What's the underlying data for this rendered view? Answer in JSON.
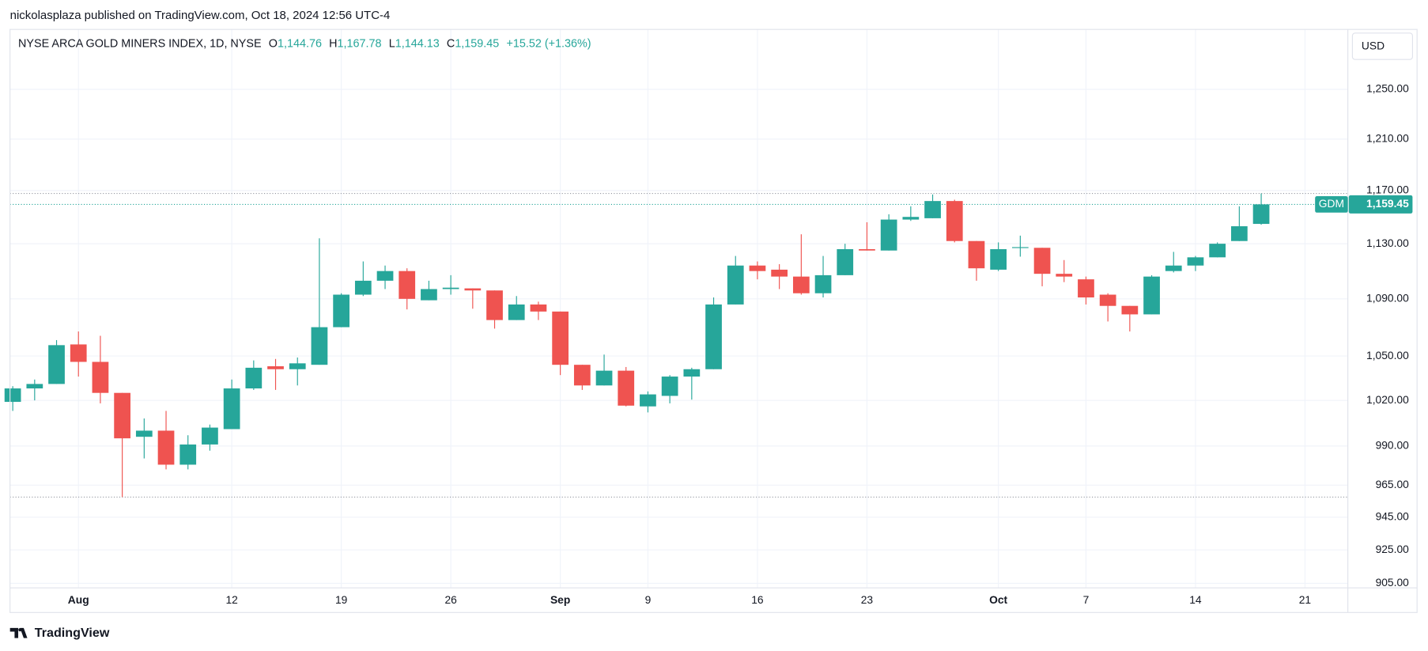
{
  "header": {
    "publisher": "nickolasplaza published on TradingView.com, Oct 18, 2024 12:56 UTC-4",
    "footer": "TradingView"
  },
  "chart_data": {
    "type": "candlestick",
    "title": "NYSE ARCA GOLD MINERS INDEX, 1D, NYSE",
    "ohlc_legend": [
      {
        "key": "O",
        "value": "1,144.76"
      },
      {
        "key": "H",
        "value": "1,167.78"
      },
      {
        "key": "L",
        "value": "1,144.13"
      },
      {
        "key": "C",
        "value": "1,159.45"
      }
    ],
    "change": "+15.52 (+1.36%)",
    "currency": "USD",
    "symbol": "GDM",
    "last_label": "1,159.45",
    "categories": [
      null,
      null,
      null,
      "Aug",
      null,
      null,
      null,
      null,
      null,
      null,
      "12",
      null,
      null,
      null,
      null,
      "19",
      null,
      null,
      null,
      null,
      "26",
      null,
      null,
      null,
      null,
      "Sep",
      null,
      null,
      null,
      "9",
      null,
      null,
      null,
      null,
      "16",
      null,
      null,
      null,
      null,
      "23",
      null,
      null,
      null,
      null,
      null,
      "Oct",
      null,
      null,
      null,
      "7",
      null,
      null,
      null,
      null,
      "14",
      null,
      null,
      null,
      null,
      "21"
    ],
    "open": [
      1019,
      1028,
      1031,
      1058,
      1046,
      1025,
      996,
      1000,
      978,
      991,
      1001,
      1028,
      1043,
      1041,
      1044,
      1070,
      1093,
      1103,
      1110,
      1089,
      1097,
      1097.5,
      1096,
      1075,
      1086,
      1081,
      1044,
      1030,
      1040,
      1016,
      1023,
      1036,
      1041,
      1086,
      1114,
      1111,
      1106,
      1094,
      1107,
      1126,
      1125,
      1148,
      1149,
      1162,
      1132,
      1111,
      1127,
      1127,
      1108,
      1104,
      1093,
      1085,
      1079,
      1110,
      1114,
      1120,
      1132,
      1144.76,
      null,
      null
    ],
    "high": [
      1029.5,
      1034,
      1061,
      1067,
      1064,
      1025,
      1008,
      1013,
      997,
      1004,
      1034,
      1047,
      1048,
      1049,
      1134,
      1094,
      1117,
      1114,
      1112,
      1103,
      1107,
      1097.5,
      1096,
      1092,
      1088,
      1081,
      1044,
      1051,
      1042.5,
      1026,
      1037,
      1042,
      1091,
      1121,
      1117,
      1115,
      1137,
      1121,
      1130,
      1146,
      1152,
      1158,
      1167,
      1163,
      1132,
      1131,
      1136,
      1127,
      1118,
      1106,
      1094,
      1085,
      1107,
      1124,
      1121,
      1131,
      1158,
      1167.78,
      null,
      null
    ],
    "low": [
      1013,
      1020,
      1031,
      1036,
      1018,
      957.5,
      982,
      975,
      975,
      987,
      1001,
      1027,
      1027,
      1030,
      1044,
      1070,
      1092,
      1097,
      1082.5,
      1089,
      1093,
      1083,
      1069,
      1075,
      1075,
      1037,
      1027,
      1030,
      1016,
      1012,
      1018,
      1020.5,
      1041,
      1086,
      1104,
      1097,
      1093,
      1091,
      1107,
      1125,
      1125,
      1147,
      1149,
      1131,
      1103,
      1110,
      1120.5,
      1099,
      1102,
      1086,
      1074,
      1067,
      1079,
      1109,
      1110,
      1120,
      1132,
      1144.13,
      null,
      null
    ],
    "close": [
      1028,
      1031,
      1057.5,
      1046,
      1025,
      995,
      1000,
      978,
      991,
      1002,
      1028,
      1042,
      1041,
      1045,
      1070,
      1093,
      1103,
      1110,
      1090,
      1097,
      1098,
      1096,
      1075,
      1086,
      1081,
      1044,
      1030,
      1040,
      1016.5,
      1024,
      1036,
      1041,
      1086,
      1114,
      1110,
      1106,
      1094,
      1107,
      1126,
      1125,
      1148,
      1150,
      1162,
      1132,
      1112,
      1126,
      1127.5,
      1108,
      1106,
      1091,
      1085,
      1079,
      1106,
      1114,
      1120,
      1130,
      1143,
      1159.45,
      null,
      null
    ],
    "up_color": "#26a69a",
    "down_color": "#ef5350",
    "ylim": [
      902.3,
      1300
    ],
    "log_scale": true,
    "yticks": [
      {
        "value": 905,
        "label": "905.00"
      },
      {
        "value": 925,
        "label": "925.00"
      },
      {
        "value": 945,
        "label": "945.00"
      },
      {
        "value": 965,
        "label": "965.00"
      },
      {
        "value": 990,
        "label": "990.00"
      },
      {
        "value": 1020,
        "label": "1,020.00"
      },
      {
        "value": 1050,
        "label": "1,050.00"
      },
      {
        "value": 1090,
        "label": "1,090.00"
      },
      {
        "value": 1130,
        "label": "1,130.00"
      },
      {
        "value": 1170,
        "label": "1,170.00"
      },
      {
        "value": 1210,
        "label": "1,210.00"
      },
      {
        "value": 1250,
        "label": "1,250.00"
      }
    ],
    "grid": true
  }
}
